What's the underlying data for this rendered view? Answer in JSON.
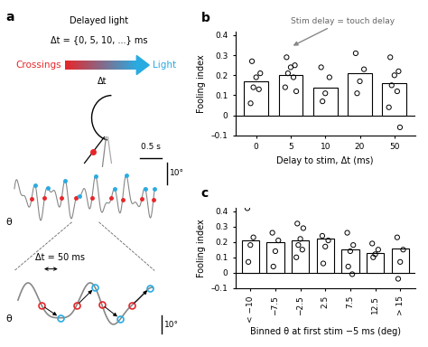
{
  "panel_a": {
    "label": "a",
    "title": "Delayed light",
    "delay_set": "Δt = {0, 5, 10, ...} ms",
    "gradient_start": "Crossings",
    "gradient_end": "Light",
    "gradient_label": "Δt",
    "scalebar_angle": "10°",
    "scalebar_time": "0.5 s",
    "trace_label": "θ",
    "zoom_delay": "Δt = 50 ms",
    "zoom_scalebar": "10°",
    "zoom_trace_label": "θ"
  },
  "chart_data": [
    {
      "panel": "b",
      "type": "bar",
      "annotation": {
        "text": "Stim delay = touch delay",
        "category": "5"
      },
      "x_label": "Delay to stim, Δt (ms)",
      "y_label": "Fooling index",
      "categories": [
        "0",
        "5",
        "10",
        "20",
        "50"
      ],
      "values": [
        0.17,
        0.2,
        0.14,
        0.21,
        0.16
      ],
      "points": [
        [
          0.27,
          0.21,
          0.19,
          0.14,
          0.13,
          0.06
        ],
        [
          0.29,
          0.25,
          0.24,
          0.21,
          0.19,
          0.14,
          0.12
        ],
        [
          0.24,
          0.19,
          0.11,
          0.07
        ],
        [
          0.31,
          0.23,
          0.17,
          0.11
        ],
        [
          0.29,
          0.22,
          0.2,
          0.15,
          0.12,
          0.04,
          -0.06
        ]
      ],
      "color": "#ffffff",
      "ylim": [
        -0.1,
        0.42
      ],
      "yticks": [
        {
          "value": -0.1,
          "label": "–0.1"
        },
        0,
        0.1,
        0.2,
        0.3,
        0.4
      ]
    },
    {
      "panel": "c",
      "type": "bar",
      "x_label": "Binned θ at first stim −5 ms (deg)",
      "y_label": "Fooling index",
      "categories": [
        "< −10",
        "−7.5",
        "−2.5",
        "2.5",
        "7.5",
        "12.5",
        "> 15"
      ],
      "values": [
        0.21,
        0.2,
        0.21,
        0.22,
        0.15,
        0.13,
        0.16
      ],
      "points": [
        [
          0.42,
          0.23,
          0.18,
          0.07
        ],
        [
          0.26,
          0.21,
          0.14,
          0.04
        ],
        [
          0.32,
          0.29,
          0.22,
          0.18,
          0.15,
          0.1
        ],
        [
          0.24,
          0.21,
          0.17,
          0.06
        ],
        [
          0.26,
          0.18,
          0.14,
          0.04,
          -0.01
        ],
        [
          0.19,
          0.15,
          0.12,
          0.1
        ],
        [
          0.23,
          0.15,
          0.07,
          -0.04
        ]
      ],
      "color": "#ffffff",
      "ylim": [
        -0.1,
        0.42
      ],
      "yticks": [
        {
          "value": -0.1,
          "label": "–0.1"
        },
        0,
        0.1,
        0.2,
        0.3,
        0.4
      ]
    }
  ]
}
